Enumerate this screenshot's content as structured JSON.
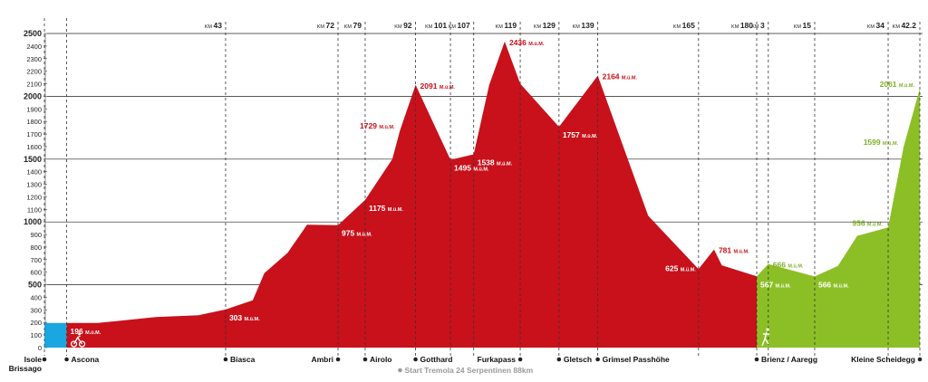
{
  "chart_data": {
    "type": "area",
    "ylim": [
      0,
      2500
    ],
    "y_ticks": [
      0,
      100,
      200,
      300,
      400,
      500,
      600,
      700,
      800,
      900,
      1000,
      1100,
      1200,
      1300,
      1400,
      1500,
      1600,
      1700,
      1800,
      1900,
      2000,
      2100,
      2200,
      2300,
      2400,
      2500
    ],
    "y_major_ticks": [
      500,
      1000,
      1500,
      2000
    ],
    "unit_suffix": "M.ü.M.",
    "grid": "horizontal lines at 500 m steps",
    "colors": {
      "swim": "#1aa6e0",
      "bike": "#c8111b",
      "run": "#8cbf26",
      "bike_label": "#c8111b",
      "run_label": "#7fb12a"
    },
    "swim_segment": {
      "x_start": 0,
      "x_end": 2,
      "elevation": 196
    },
    "bike_profile": [
      {
        "km": 2,
        "elevation": 196
      },
      {
        "km": 10,
        "elevation": 196
      },
      {
        "km": 25,
        "elevation": 243
      },
      {
        "km": 36,
        "elevation": 258
      },
      {
        "km": 43,
        "elevation": 303
      },
      {
        "km": 50,
        "elevation": 377
      },
      {
        "km": 53,
        "elevation": 592
      },
      {
        "km": 59,
        "elevation": 755
      },
      {
        "km": 64,
        "elevation": 978
      },
      {
        "km": 72,
        "elevation": 975
      },
      {
        "km": 79,
        "elevation": 1175
      },
      {
        "km": 86,
        "elevation": 1500
      },
      {
        "km": 88,
        "elevation": 1729
      },
      {
        "km": 92,
        "elevation": 2091
      },
      {
        "km": 101,
        "elevation": 1495
      },
      {
        "km": 107,
        "elevation": 1538
      },
      {
        "km": 111,
        "elevation": 2090
      },
      {
        "km": 115,
        "elevation": 2436
      },
      {
        "km": 119,
        "elevation": 2100
      },
      {
        "km": 129,
        "elevation": 1757
      },
      {
        "km": 139,
        "elevation": 2164
      },
      {
        "km": 152,
        "elevation": 1050
      },
      {
        "km": 165,
        "elevation": 625
      },
      {
        "km": 169,
        "elevation": 781
      },
      {
        "km": 171,
        "elevation": 655
      },
      {
        "km": 180,
        "elevation": 567
      }
    ],
    "run_profile": [
      {
        "km": 0,
        "elevation": 567
      },
      {
        "km": 3,
        "elevation": 666
      },
      {
        "km": 15,
        "elevation": 566
      },
      {
        "km": 21,
        "elevation": 650
      },
      {
        "km": 26,
        "elevation": 890
      },
      {
        "km": 34,
        "elevation": 956
      },
      {
        "km": 38,
        "elevation": 1599
      },
      {
        "km": 42.2,
        "elevation": 2061
      }
    ],
    "km_markers": [
      {
        "label": "KM 43",
        "bike_km": 43
      },
      {
        "label": "KM 72",
        "bike_km": 72
      },
      {
        "label": "KM 79",
        "bike_km": 79
      },
      {
        "label": "KM 92",
        "bike_km": 92
      },
      {
        "label": "KM 101",
        "bike_km": 101
      },
      {
        "label": "KM 107",
        "bike_km": 107
      },
      {
        "label": "KM 119",
        "bike_km": 119
      },
      {
        "label": "KM 129",
        "bike_km": 129
      },
      {
        "label": "KM 139",
        "bike_km": 139
      },
      {
        "label": "KM 165",
        "bike_km": 165
      },
      {
        "label": "KM 180",
        "bike_km": 180
      },
      {
        "label": "KM 3",
        "run_km": 3
      },
      {
        "label": "KM 15",
        "run_km": 15
      },
      {
        "label": "KM 34",
        "run_km": 34
      },
      {
        "label": "KM 42.2",
        "run_km": 42.2
      }
    ],
    "elevation_labels": [
      {
        "value": "196",
        "bike_km": 2,
        "elevation": 196,
        "color": "white",
        "placement": "inside-right"
      },
      {
        "value": "303",
        "bike_km": 43,
        "elevation": 303,
        "color": "white",
        "placement": "inside-right"
      },
      {
        "value": "975",
        "bike_km": 72,
        "elevation": 975,
        "color": "white",
        "placement": "inside-right"
      },
      {
        "value": "1175",
        "bike_km": 79,
        "elevation": 1175,
        "color": "white",
        "placement": "inside-right"
      },
      {
        "value": "1729",
        "bike_km": 88,
        "elevation": 1729,
        "color": "red",
        "placement": "outside-left"
      },
      {
        "value": "2091",
        "bike_km": 92,
        "elevation": 2091,
        "color": "red",
        "placement": "outside-right"
      },
      {
        "value": "1495",
        "bike_km": 101,
        "elevation": 1495,
        "color": "white",
        "placement": "inside-right"
      },
      {
        "value": "1538",
        "bike_km": 107,
        "elevation": 1538,
        "color": "white",
        "placement": "inside-right"
      },
      {
        "value": "2436",
        "bike_km": 115,
        "elevation": 2436,
        "color": "red",
        "placement": "outside-right"
      },
      {
        "value": "1757",
        "bike_km": 129,
        "elevation": 1757,
        "color": "white",
        "placement": "inside-right"
      },
      {
        "value": "2164",
        "bike_km": 139,
        "elevation": 2164,
        "color": "red",
        "placement": "outside-right"
      },
      {
        "value": "625",
        "bike_km": 165,
        "elevation": 625,
        "color": "white",
        "placement": "inside-left"
      },
      {
        "value": "781",
        "bike_km": 169,
        "elevation": 781,
        "color": "red",
        "placement": "outside-right"
      },
      {
        "value": "567",
        "bike_km": 180,
        "elevation": 567,
        "color": "white",
        "placement": "inside-right"
      },
      {
        "value": "666",
        "run_km": 3,
        "elevation": 666,
        "color": "green",
        "placement": "outside-right"
      },
      {
        "value": "566",
        "run_km": 15,
        "elevation": 566,
        "color": "white",
        "placement": "inside-right"
      },
      {
        "value": "956",
        "run_km": 34,
        "elevation": 956,
        "color": "green",
        "placement": "outside-left"
      },
      {
        "value": "1599",
        "run_km": 38,
        "elevation": 1599,
        "color": "green",
        "placement": "outside-left"
      },
      {
        "value": "2061",
        "run_km": 42.2,
        "elevation": 2061,
        "color": "green",
        "placement": "outside-left"
      }
    ],
    "locations": [
      {
        "name": "Isole\nBrissago",
        "point": "start"
      },
      {
        "name": "Ascona",
        "bike_km": 2
      },
      {
        "name": "Biasca",
        "bike_km": 43
      },
      {
        "name": "Ambri",
        "bike_km": 72,
        "anchor": "end"
      },
      {
        "name": "Airolo",
        "bike_km": 79
      },
      {
        "name": "Gotthard",
        "bike_km": 92
      },
      {
        "name": "Furkapass",
        "bike_km": 119,
        "anchor": "end"
      },
      {
        "name": "Gletsch",
        "bike_km": 129
      },
      {
        "name": "Grimsel Passhöhe",
        "bike_km": 139
      },
      {
        "name": "Brienz / Aaregg",
        "bike_km": 180
      },
      {
        "name": "Kleine Scheidegg",
        "run_km": 42.2,
        "anchor": "end"
      }
    ],
    "annotation": {
      "text": "Start Tremola 24 Serpentinen 88km",
      "bike_km": 88
    }
  }
}
